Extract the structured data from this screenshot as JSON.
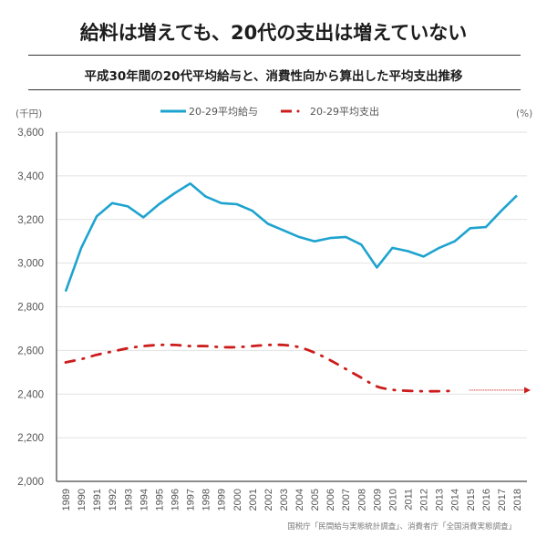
{
  "header": {
    "title": "給料は増えても、20代の支出は増えていない",
    "subtitle": "平成30年間の20代平均給与と、消費性向から算出した平均支出推移"
  },
  "source": "国税庁「民間給与実態統計調査」、消費者庁「全国消費実態調査」",
  "colors": {
    "salary": "#1ea3cf",
    "expenditure": "#cc1c1c",
    "grid": "#e2e2e2",
    "axis": "#666666"
  },
  "chart_data": {
    "type": "line",
    "title": "平成30年間の20代平均給与と、消費性向から算出した平均支出推移",
    "ylabel": "(千円)",
    "y2label": "(%)",
    "ylim": [
      2000,
      3600
    ],
    "yticks": [
      2000,
      2200,
      2400,
      2600,
      2800,
      3000,
      3200,
      3400,
      3600
    ],
    "ytick_labels": [
      "2,000",
      "2,200",
      "2,400",
      "2,600",
      "2,800",
      "3,000",
      "3,200",
      "3,400",
      "3,600"
    ],
    "grid": true,
    "legend_position": "top-center",
    "x": [
      1989,
      1990,
      1991,
      1992,
      1993,
      1994,
      1995,
      1996,
      1997,
      1998,
      1999,
      2000,
      2001,
      2002,
      2003,
      2004,
      2005,
      2006,
      2007,
      2008,
      2009,
      2010,
      2011,
      2012,
      2013,
      2014,
      2015,
      2016,
      2017,
      2018
    ],
    "series": [
      {
        "name": "20-29平均給与",
        "style": "solid",
        "values": [
          2870,
          3070,
          3215,
          3275,
          3260,
          3210,
          3270,
          3320,
          3365,
          3305,
          3275,
          3270,
          3240,
          3180,
          3150,
          3120,
          3100,
          3115,
          3120,
          3085,
          2980,
          3070,
          3055,
          3030,
          3070,
          3100,
          3160,
          3165,
          3240,
          3310
        ]
      },
      {
        "name": "20-29平均支出",
        "style": "dash-dot",
        "values": [
          2545,
          2560,
          2580,
          2595,
          2610,
          2620,
          2625,
          2625,
          2620,
          2620,
          2615,
          2615,
          2620,
          2625,
          2625,
          2615,
          2590,
          2555,
          2515,
          2475,
          2435,
          2420,
          2415,
          2413,
          2413,
          2415,
          null,
          null,
          null,
          null
        ],
        "projection": {
          "from": 2014,
          "to": 2018,
          "value": 2418,
          "style": "dotted-arrow"
        }
      }
    ]
  }
}
